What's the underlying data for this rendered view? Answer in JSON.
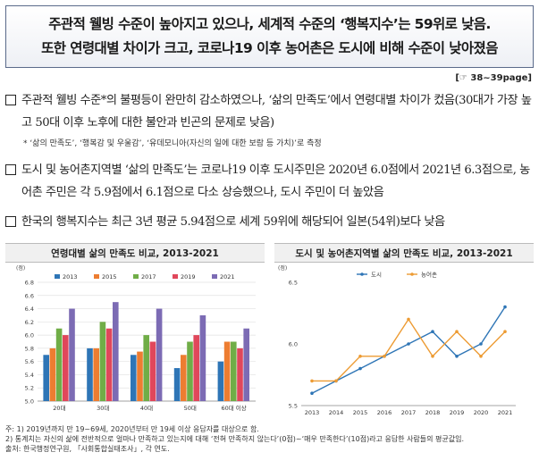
{
  "header": {
    "line1": "주관적 웰빙 수준이 높아지고 있으나, 세계적 수준의 ‘행복지수’는 59위로 낮음.",
    "line2": "또한 연령대별 차이가 크고, 코로나19 이후 농어촌은 도시에 비해 수준이 낮아졌음"
  },
  "page_ref": "[☞  38~39page]",
  "bullets": [
    {
      "text": "주관적 웰빙 수준*의 불평등이 완만히 감소하였으나, ‘삶의 만족도’에서 연령대별 차이가 컸음(30대가 가장 높고 50대 이후 노후에 대한 불안과 빈곤의 문제로 낮음)"
    },
    {
      "text": "도시 및 농어촌지역별 ‘삶의 만족도’는 코로나19 이후 도시주민은 2020년 6.0점에서 2021년 6.3점으로, 농어촌 주민은 각 5.9점에서 6.1점으로 다소 상승했으나, 도시 주민이 더 높았음"
    },
    {
      "text": "한국의 행복지수는 최근 3년 평균 5.94점으로 세계 59위에 해당되어 일본(54위)보다 낮음"
    }
  ],
  "bullet_note": "* ‘삶의 만족도’, ‘행복감 및 우울감’, ‘유데모니아(자신의 일에 대한 보람 등 가치)’로 측정",
  "colors": {
    "y2013": "#2e75b6",
    "y2015": "#ed7d31",
    "y2017": "#70ad47",
    "y2019": "#e0475b",
    "y2021": "#7c6bb4",
    "city": "#2e75b6",
    "rural": "#ed9b33"
  },
  "chart_data": [
    {
      "type": "bar",
      "title": "연령대별 삶의 만족도 비교, 2013-2021",
      "unit": "(점)",
      "categories": [
        "20대",
        "30대",
        "40대",
        "50대",
        "60대 이상"
      ],
      "series": [
        {
          "name": "2013",
          "values": [
            5.7,
            5.8,
            5.7,
            5.5,
            5.6
          ]
        },
        {
          "name": "2015",
          "values": [
            5.8,
            5.8,
            5.75,
            5.7,
            5.9
          ]
        },
        {
          "name": "2017",
          "values": [
            6.1,
            6.2,
            6.0,
            5.9,
            5.9
          ]
        },
        {
          "name": "2019",
          "values": [
            6.0,
            6.1,
            5.9,
            6.0,
            5.8
          ]
        },
        {
          "name": "2021",
          "values": [
            6.4,
            6.5,
            6.4,
            6.3,
            6.1
          ]
        }
      ],
      "ylim": [
        5.0,
        6.8
      ],
      "yticks": [
        "5.0",
        "5.2",
        "5.4",
        "5.6",
        "5.8",
        "6.0",
        "6.2",
        "6.4",
        "6.6",
        "6.8"
      ]
    },
    {
      "type": "line",
      "title": "도시 및 농어촌지역별 삶의 만족도 비교, 2013-2021",
      "unit": "(점)",
      "x": [
        "2013",
        "2014",
        "2015",
        "2016",
        "2017",
        "2018",
        "2019",
        "2020",
        "2021"
      ],
      "series": [
        {
          "name": "도시",
          "values": [
            5.6,
            5.7,
            5.8,
            5.9,
            6.0,
            6.1,
            5.9,
            6.0,
            6.3
          ]
        },
        {
          "name": "농어촌",
          "values": [
            5.7,
            5.7,
            5.9,
            5.9,
            6.2,
            5.9,
            6.1,
            5.9,
            6.1
          ]
        }
      ],
      "ylim": [
        5.5,
        6.5
      ],
      "yticks": [
        "5.5",
        "6.0",
        "6.5"
      ]
    }
  ],
  "notes": {
    "line1": "주: 1) 2019년까지 만 19~69세, 2020년부터 만 19세 이상 응답자를 대상으로 함.",
    "line2": "    2) 통계치는 자신의 삶에 전반적으로 얼마나 만족하고 있는지에 대해 ‘전혀 만족하지 않는다’(0점)~‘매우 만족한다’(10점)라고 응답한 사람들의 평균값임.",
    "line3": "출처: 한국행정연구원, 「사회통합실태조사」, 각 연도."
  }
}
